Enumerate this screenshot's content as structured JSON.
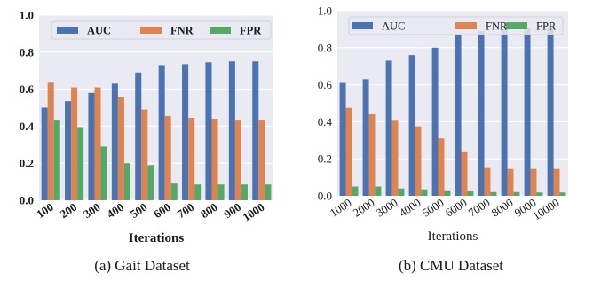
{
  "chart_data": [
    {
      "type": "bar",
      "caption": "(a)  Gait Dataset",
      "xlabel": "Iterations",
      "ylabel": "",
      "ylim": [
        0,
        1.0
      ],
      "yticks": [
        "0.0",
        "0.2",
        "0.4",
        "0.6",
        "0.8",
        "1.0"
      ],
      "categories": [
        "100",
        "200",
        "300",
        "400",
        "500",
        "600",
        "700",
        "800",
        "900",
        "1000"
      ],
      "series": [
        {
          "name": "AUC",
          "color": "#4c72b0",
          "values": [
            0.5,
            0.535,
            0.58,
            0.63,
            0.69,
            0.73,
            0.735,
            0.745,
            0.75,
            0.75
          ]
        },
        {
          "name": "FNR",
          "color": "#dd8452",
          "values": [
            0.635,
            0.61,
            0.61,
            0.555,
            0.49,
            0.455,
            0.445,
            0.44,
            0.435,
            0.435
          ]
        },
        {
          "name": "FPR",
          "color": "#55a868",
          "values": [
            0.435,
            0.395,
            0.29,
            0.2,
            0.19,
            0.09,
            0.085,
            0.085,
            0.085,
            0.085
          ]
        }
      ],
      "bold_text": true,
      "legend_position": "top",
      "grid": true
    },
    {
      "type": "bar",
      "caption": "(b)  CMU Dataset",
      "xlabel": "Iterations",
      "ylabel": "",
      "ylim": [
        0,
        1.0
      ],
      "yticks": [
        "0.0",
        "0.2",
        "0.4",
        "0.6",
        "0.8",
        "1.0"
      ],
      "categories": [
        "1000",
        "2000",
        "3000",
        "4000",
        "5000",
        "6000",
        "7000",
        "8000",
        "9000",
        "10000"
      ],
      "series": [
        {
          "name": "AUC",
          "color": "#4c72b0",
          "values": [
            0.61,
            0.63,
            0.73,
            0.76,
            0.8,
            0.875,
            0.89,
            0.9,
            0.905,
            0.905
          ]
        },
        {
          "name": "FNR",
          "color": "#dd8452",
          "values": [
            0.475,
            0.44,
            0.41,
            0.375,
            0.31,
            0.24,
            0.15,
            0.145,
            0.145,
            0.145
          ]
        },
        {
          "name": "FPR",
          "color": "#55a868",
          "values": [
            0.05,
            0.05,
            0.04,
            0.035,
            0.03,
            0.025,
            0.02,
            0.02,
            0.018,
            0.018
          ]
        }
      ],
      "bold_text": false,
      "legend_position": "top",
      "grid": true
    }
  ]
}
